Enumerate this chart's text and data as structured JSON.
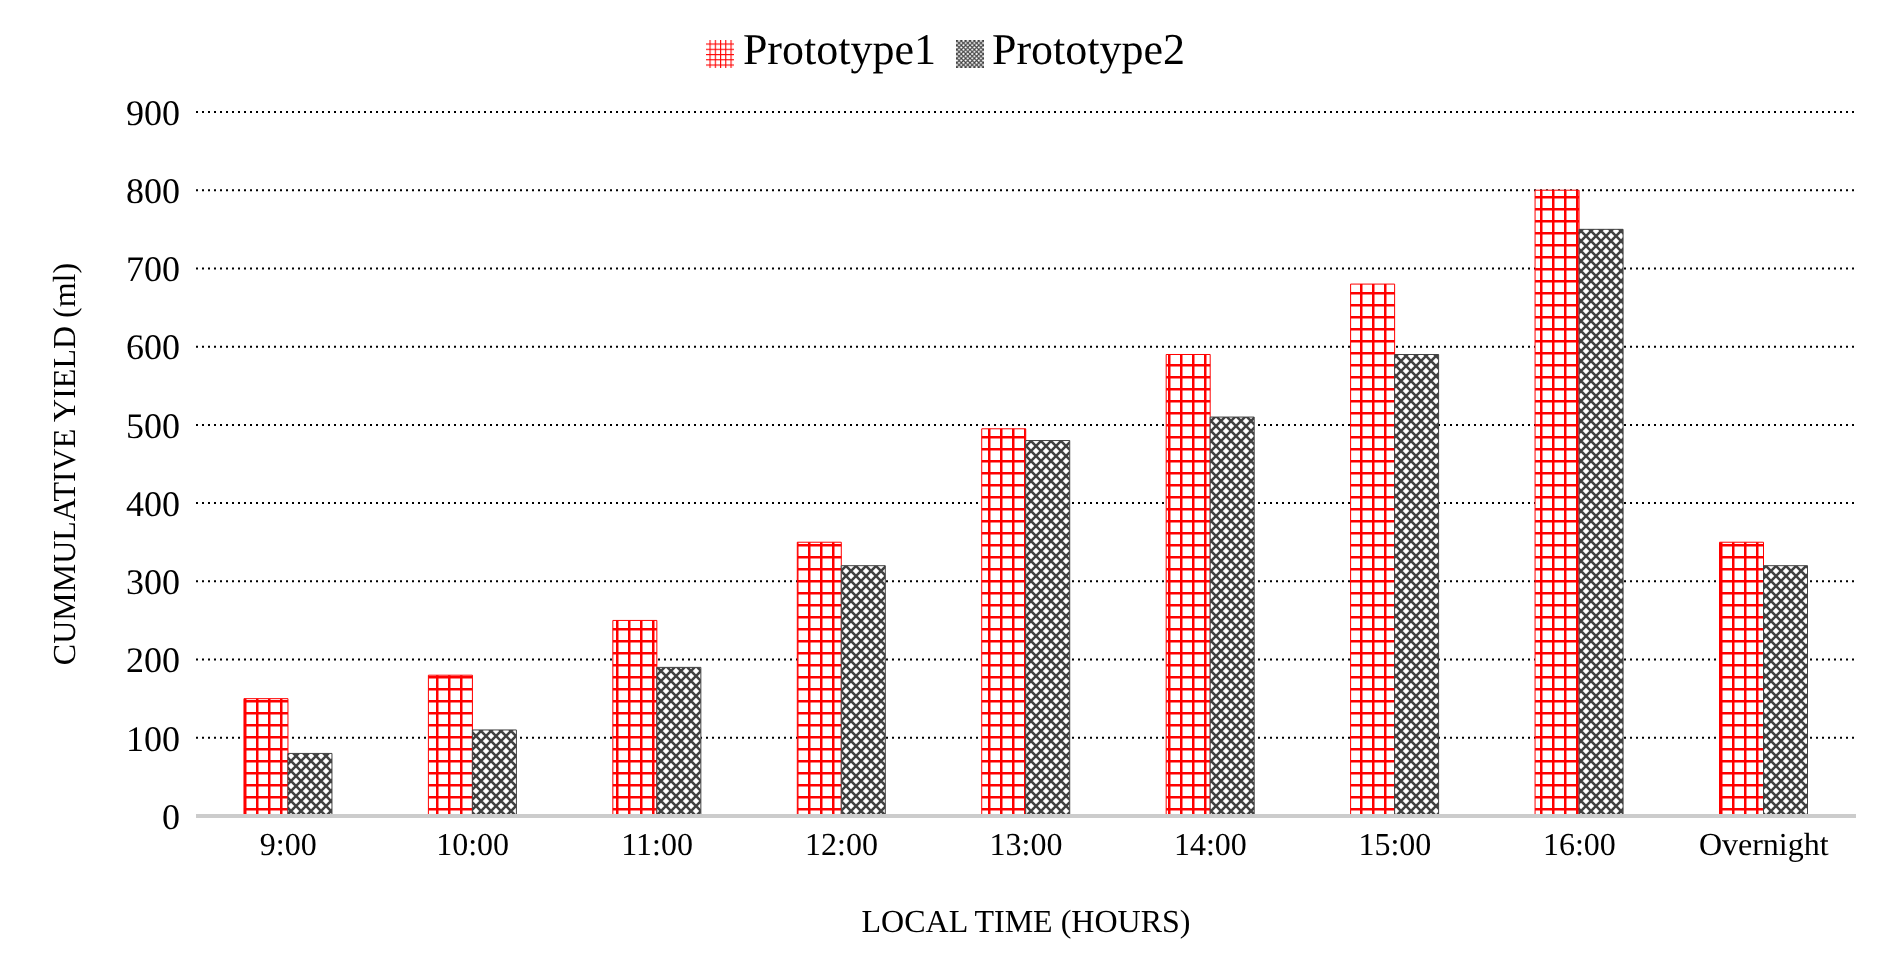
{
  "chart_data": {
    "type": "bar",
    "xlabel": "LOCAL TIME (HOURS)",
    "ylabel": "CUMMULATIVE YIELD (ml)",
    "categories": [
      "9:00",
      "10:00",
      "11:00",
      "12:00",
      "13:00",
      "14:00",
      "15:00",
      "16:00",
      "Overnight"
    ],
    "series": [
      {
        "name": "Prototype1",
        "color": "#ff0000",
        "values": [
          150,
          180,
          250,
          350,
          495,
          590,
          680,
          800,
          350
        ]
      },
      {
        "name": "Prototype2",
        "color": "#404040",
        "values": [
          80,
          110,
          190,
          320,
          480,
          510,
          590,
          750,
          320
        ]
      }
    ],
    "ylim": [
      0,
      900
    ],
    "yticks": [
      0,
      100,
      200,
      300,
      400,
      500,
      600,
      700,
      800,
      900
    ],
    "grid": "y",
    "legend": "top"
  }
}
